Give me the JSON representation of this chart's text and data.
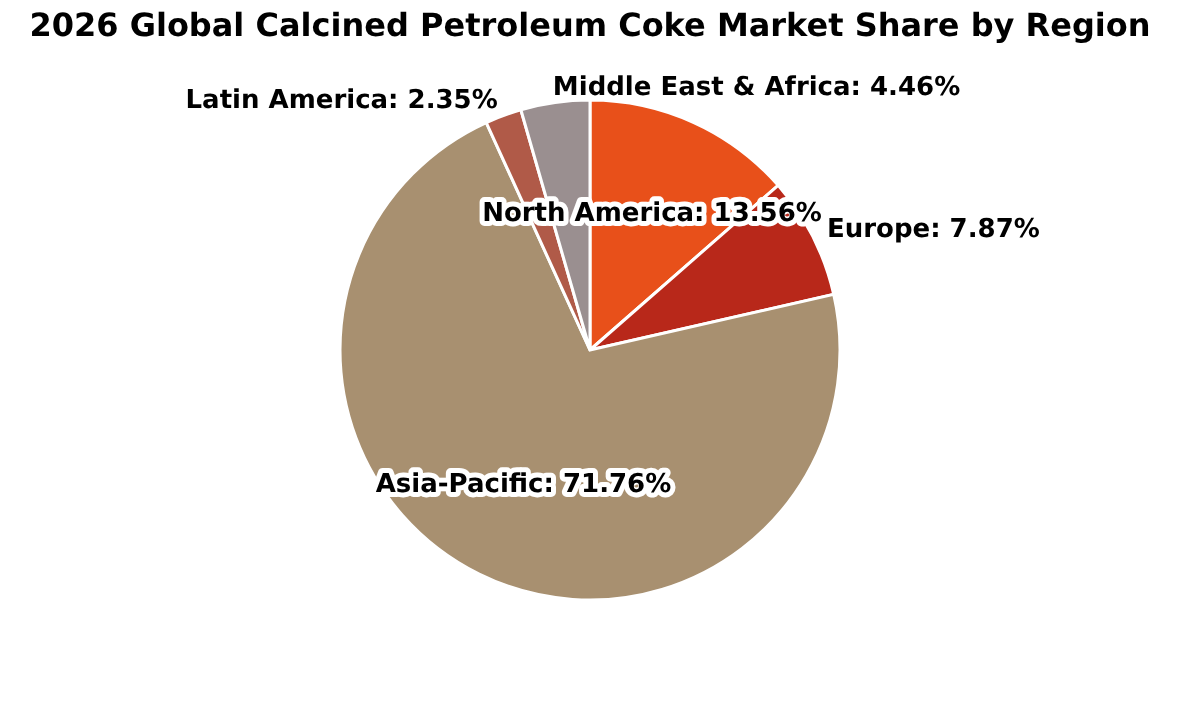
{
  "chart_data": {
    "type": "pie",
    "title": "2026 Global Calcined Petroleum Coke Market Share by Region",
    "categories": [
      "North America",
      "Europe",
      "Asia-Pacific",
      "Latin America",
      "Middle East & Africa"
    ],
    "values": [
      13.56,
      7.87,
      71.76,
      2.35,
      4.46
    ],
    "value_labels": [
      "13.56%",
      "7.87%",
      "71.76%",
      "2.35%",
      "4.46%"
    ],
    "colors": [
      "#e8501a",
      "#b8281a",
      "#a89070",
      "#b05a48",
      "#9a8f90"
    ],
    "legend": false
  }
}
